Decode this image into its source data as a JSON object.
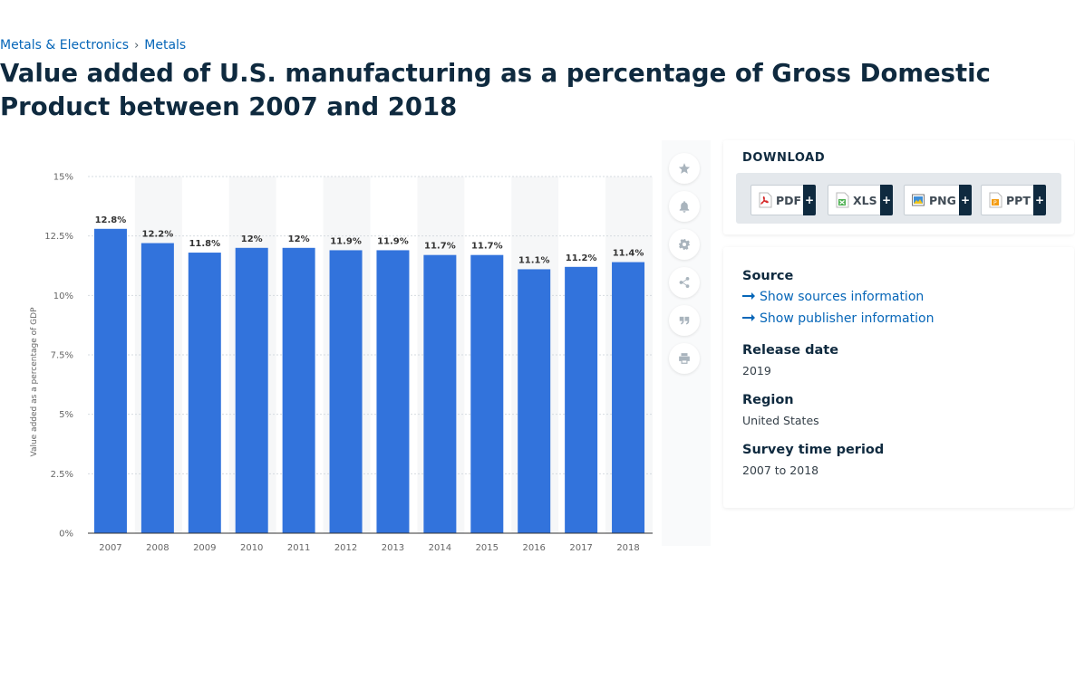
{
  "breadcrumb": {
    "items": [
      "Metals & Electronics",
      "Metals"
    ],
    "separator": "›"
  },
  "title": "Value added of U.S. manufacturing as a percentage of Gross Domestic Product between 2007 and 2018",
  "colors": {
    "bar": "#3273dc",
    "link": "#0666b8",
    "heading": "#0f2a3f"
  },
  "chart_data": {
    "type": "bar",
    "categories": [
      "2007",
      "2008",
      "2009",
      "2010",
      "2011",
      "2012",
      "2013",
      "2014",
      "2015",
      "2016",
      "2017",
      "2018"
    ],
    "values": [
      12.8,
      12.2,
      11.8,
      12,
      12,
      11.9,
      11.9,
      11.7,
      11.7,
      11.1,
      11.2,
      11.4
    ],
    "data_labels": [
      "12.8%",
      "12.2%",
      "11.8%",
      "12%",
      "12%",
      "11.9%",
      "11.9%",
      "11.7%",
      "11.7%",
      "11.1%",
      "11.2%",
      "11.4%"
    ],
    "yticks": [
      0,
      2.5,
      5,
      7.5,
      10,
      12.5,
      15
    ],
    "ytick_labels": [
      "0%",
      "2.5%",
      "5%",
      "7.5%",
      "10%",
      "12.5%",
      "15%"
    ],
    "ylim": [
      0,
      15
    ],
    "xlabel": "",
    "ylabel": "Value added as a percentage of GDP",
    "title": "",
    "grid": true,
    "color": "#3273dc"
  },
  "tools": [
    {
      "name": "favorite",
      "icon": "star-icon"
    },
    {
      "name": "alert",
      "icon": "bell-icon"
    },
    {
      "name": "settings",
      "icon": "gear-icon"
    },
    {
      "name": "share",
      "icon": "share-icon"
    },
    {
      "name": "cite",
      "icon": "quote-icon"
    },
    {
      "name": "print",
      "icon": "print-icon"
    }
  ],
  "download": {
    "title": "DOWNLOAD",
    "buttons": [
      {
        "label": "PDF",
        "icon": "pdf-file-icon",
        "plus": "+"
      },
      {
        "label": "XLS",
        "icon": "xls-file-icon",
        "plus": "+"
      },
      {
        "label": "PNG",
        "icon": "png-file-icon",
        "plus": "+"
      },
      {
        "label": "PPT",
        "icon": "ppt-file-icon",
        "plus": "+"
      }
    ]
  },
  "info": {
    "source_label": "Source",
    "sources_link": "Show sources information",
    "publisher_link": "Show publisher information",
    "release_label": "Release date",
    "release_value": "2019",
    "region_label": "Region",
    "region_value": "United States",
    "period_label": "Survey time period",
    "period_value": "2007 to 2018"
  }
}
